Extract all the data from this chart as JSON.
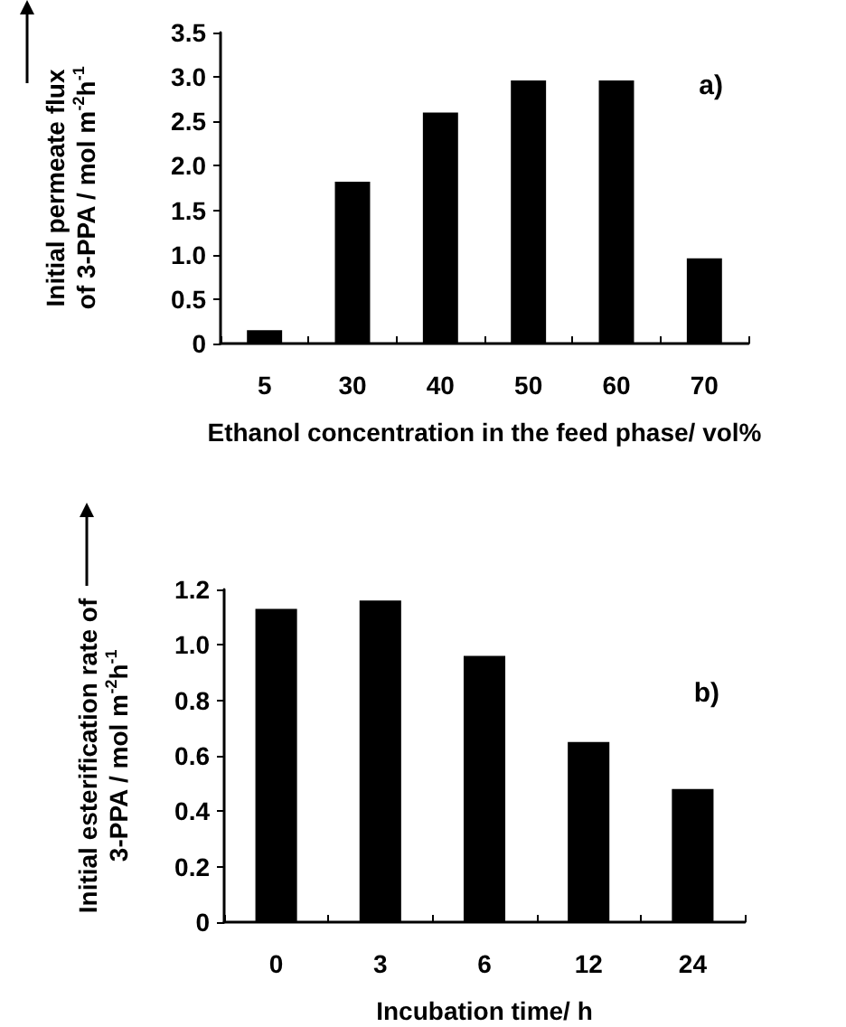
{
  "chart_data": [
    {
      "type": "bar",
      "categories": [
        "5",
        "30",
        "40",
        "50",
        "60",
        "70"
      ],
      "values": [
        0.15,
        1.82,
        2.6,
        2.96,
        2.96,
        0.96
      ],
      "color": "#000000",
      "xlabel": "Ethanol concentration in the feed phase/ vol%",
      "ylabel": "Initial permeate flux of 3-PPA / mol m$^{-2}$h$^{-1}$",
      "ylim": [
        0,
        3.5
      ],
      "yticks": [
        0,
        {
          "value": 0.5,
          "label": "0.5"
        },
        {
          "value": 1,
          "label": "1.0"
        },
        {
          "value": 1.5,
          "label": "1.5"
        },
        {
          "value": 2,
          "label": "2.0"
        },
        {
          "value": 2.5,
          "label": "2.5"
        },
        {
          "value": 3,
          "label": "3.0"
        },
        {
          "value": 3.5,
          "label": "3.5"
        }
      ],
      "grid": false,
      "annotations": [
        "a)"
      ]
    },
    {
      "type": "bar",
      "categories": [
        "0",
        "3",
        "6",
        "12",
        "24"
      ],
      "values": [
        1.13,
        1.16,
        0.96,
        0.65,
        0.48
      ],
      "color": "#000000",
      "xlabel": "Incubation time/ h",
      "ylabel": "Initial esterification rate of 3-PPA / mol m$^{-2}$h$^{-1}$",
      "ylim": [
        0,
        1.2
      ],
      "yticks": [
        0,
        {
          "value": 0.2,
          "label": "0.2"
        },
        {
          "value": 0.4,
          "label": "0.4"
        },
        {
          "value": 0.6,
          "label": "0.6"
        },
        {
          "value": 0.8,
          "label": "0.8"
        },
        {
          "value": 1,
          "label": "1.0"
        },
        {
          "value": 1.2,
          "label": "1.2"
        }
      ],
      "grid": false,
      "annotations": [
        "b)"
      ]
    }
  ]
}
